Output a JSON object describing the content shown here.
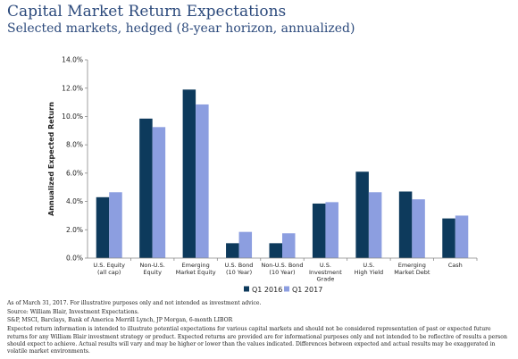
{
  "header": {
    "title": "Capital Market Return Expectations",
    "subtitle": "Selected markets, hedged (8-year horizon, annualized)"
  },
  "chart_data": {
    "type": "bar",
    "title": "Capital Market Return Expectations",
    "subtitle": "Selected markets, hedged (8-year horizon, annualized)",
    "ylabel": "Annualized Expected Return",
    "xlabel": "",
    "ylim": [
      0,
      14
    ],
    "yticks": [
      0,
      2,
      4,
      6,
      8,
      10,
      12,
      14
    ],
    "ytick_labels": [
      "0.0%",
      "2.0%",
      "4.0%",
      "6.0%",
      "8.0%",
      "10.0%",
      "12.0%",
      "14.0%"
    ],
    "grid": false,
    "legend_position": "bottom",
    "categories": [
      [
        "U.S. Equity",
        "(all cap)"
      ],
      [
        "Non-U.S.",
        "Equity"
      ],
      [
        "Emerging",
        "Market Equity"
      ],
      [
        "U.S. Bond",
        "(10 Year)"
      ],
      [
        "Non-U.S. Bond",
        "(10 Year)"
      ],
      [
        "U.S.",
        "Investment",
        "Grade"
      ],
      [
        "U.S.",
        "High Yield"
      ],
      [
        "Emerging",
        "Market Debt"
      ],
      [
        "Cash"
      ]
    ],
    "series": [
      {
        "name": "Q1 2016",
        "color": "#0d3a5c",
        "values": [
          4.3,
          9.85,
          11.9,
          1.05,
          1.05,
          3.85,
          6.1,
          4.7,
          2.8
        ]
      },
      {
        "name": "Q1 2017",
        "color": "#8c9ee0",
        "values": [
          4.65,
          9.25,
          10.85,
          1.85,
          1.75,
          3.95,
          4.65,
          4.15,
          3.0
        ]
      }
    ]
  },
  "footer": {
    "line1": "As of March 31, 2017. For illustrative purposes only and not intended as investment advice.",
    "line2": "Source: William Blair, Investment Expectations.",
    "line3": "S&P, MSCI, Barclays, Bank of America Merrill Lynch, JP Morgan, 6-month LIBOR",
    "line4": "Expected return information is intended to illustrate potential expectations for various capital markets and should not be considered representation of past or expected future returns for any William Blair investment strategy or product. Expected returns are provided are for informational purposes only and not intended to be reflective of results a person should expect to achieve. Actual results will vary and may be higher or lower than the values indicated. Differences between expected and actual results may be exaggerated in volatile market environments."
  }
}
